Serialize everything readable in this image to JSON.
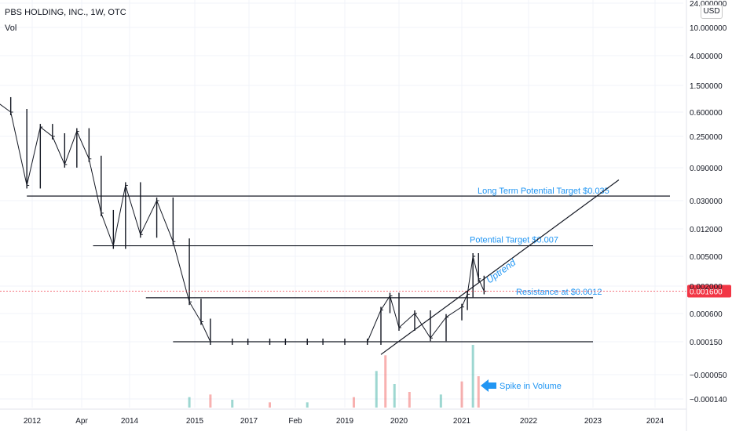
{
  "header": {
    "title": "PBS HOLDING, INC., 1W, OTC",
    "indicator": "Vol",
    "currency": "USD"
  },
  "colors": {
    "price": "#131722",
    "line": "#131722",
    "annotation": "#2196f3",
    "current_price": "#f23645",
    "volume_up": "#26a69a",
    "volume_down": "#ef5350",
    "grid": "#f0f3fa"
  },
  "chart_data": {
    "type": "bar",
    "y_scale": "log",
    "price_ticks": [
      "24.000000",
      "10.000000",
      "4.000000",
      "1.500000",
      "0.600000",
      "0.250000",
      "0.090000",
      "0.030000",
      "0.012000",
      "0.005000",
      "0.002000",
      "0.000600",
      "0.000150",
      "−0.000050",
      "−0.000140"
    ],
    "current_price": "0.001600",
    "x_ticks": [
      "2012",
      "Apr",
      "2014",
      "2015",
      "2017",
      "Feb",
      "2019",
      "2020",
      "2021",
      "2022",
      "2023",
      "2024"
    ],
    "ylim": [
      0.00012,
      24
    ],
    "xlim": [
      "2011-06",
      "2024-06"
    ],
    "price_series": {
      "name": "PBS HOLDING, INC., 1W, OTC",
      "points": [
        {
          "date": "2011-06",
          "price": 0.9
        },
        {
          "date": "2011-09",
          "price": 0.6
        },
        {
          "date": "2011-12",
          "price": 0.05
        },
        {
          "date": "2012-03",
          "price": 0.35
        },
        {
          "date": "2012-06",
          "price": 0.25
        },
        {
          "date": "2012-09",
          "price": 0.1
        },
        {
          "date": "2012-12",
          "price": 0.3
        },
        {
          "date": "2013-03",
          "price": 0.12
        },
        {
          "date": "2013-06",
          "price": 0.02
        },
        {
          "date": "2013-09",
          "price": 0.007
        },
        {
          "date": "2013-12",
          "price": 0.05
        },
        {
          "date": "2014-03",
          "price": 0.01
        },
        {
          "date": "2014-06",
          "price": 0.03
        },
        {
          "date": "2014-09",
          "price": 0.008
        },
        {
          "date": "2014-12",
          "price": 0.001
        },
        {
          "date": "2015-03",
          "price": 0.0004
        },
        {
          "date": "2015-06",
          "price": 0.00015
        },
        {
          "date": "2016-01",
          "price": 0.00015
        },
        {
          "date": "2016-06",
          "price": 0.00015
        },
        {
          "date": "2017-01",
          "price": 0.00015
        },
        {
          "date": "2017-06",
          "price": 0.00015
        },
        {
          "date": "2018-01",
          "price": 0.00015
        },
        {
          "date": "2018-06",
          "price": 0.00015
        },
        {
          "date": "2019-01",
          "price": 0.00015
        },
        {
          "date": "2019-06",
          "price": 0.00015
        },
        {
          "date": "2019-09",
          "price": 0.0007
        },
        {
          "date": "2019-11",
          "price": 0.0013
        },
        {
          "date": "2020-01",
          "price": 0.0003
        },
        {
          "date": "2020-04",
          "price": 0.0006
        },
        {
          "date": "2020-07",
          "price": 0.00018
        },
        {
          "date": "2020-10",
          "price": 0.0005
        },
        {
          "date": "2021-01",
          "price": 0.0008
        },
        {
          "date": "2021-02",
          "price": 0.0014
        },
        {
          "date": "2021-03",
          "price": 0.005
        },
        {
          "date": "2021-04",
          "price": 0.0025
        },
        {
          "date": "2021-05",
          "price": 0.0016
        }
      ]
    },
    "volume_series": {
      "name": "Vol",
      "points": [
        {
          "date": "2014-12",
          "value": 4
        },
        {
          "date": "2015-06",
          "value": 5
        },
        {
          "date": "2016-01",
          "value": 3
        },
        {
          "date": "2017-01",
          "value": 2
        },
        {
          "date": "2018-01",
          "value": 2
        },
        {
          "date": "2019-03",
          "value": 4
        },
        {
          "date": "2019-08",
          "value": 14
        },
        {
          "date": "2019-10",
          "value": 20
        },
        {
          "date": "2019-12",
          "value": 9
        },
        {
          "date": "2020-03",
          "value": 6
        },
        {
          "date": "2020-09",
          "value": 5
        },
        {
          "date": "2021-01",
          "value": 10
        },
        {
          "date": "2021-03",
          "value": 24
        },
        {
          "date": "2021-04",
          "value": 12
        }
      ]
    },
    "horizontal_lines": [
      {
        "label": "Long Term Potential Target $0.035",
        "price": 0.035,
        "from": "2011-12",
        "to": "2024-04"
      },
      {
        "label": "Potential Target $0.007",
        "price": 0.007,
        "from": "2013-04",
        "to": "2023-01"
      },
      {
        "label": "Resistance at $0.0012",
        "price": 0.0012,
        "from": "2014-04",
        "to": "2023-01"
      },
      {
        "label": "",
        "price": 0.00015,
        "from": "2014-09",
        "to": "2023-01"
      }
    ],
    "trend_line": {
      "label": "Uptrend",
      "from": {
        "date": "2019-09",
        "price": 8e-05
      },
      "to": {
        "date": "2023-06",
        "price": 0.06
      }
    },
    "volume_annotation": "Spike in Volume"
  }
}
